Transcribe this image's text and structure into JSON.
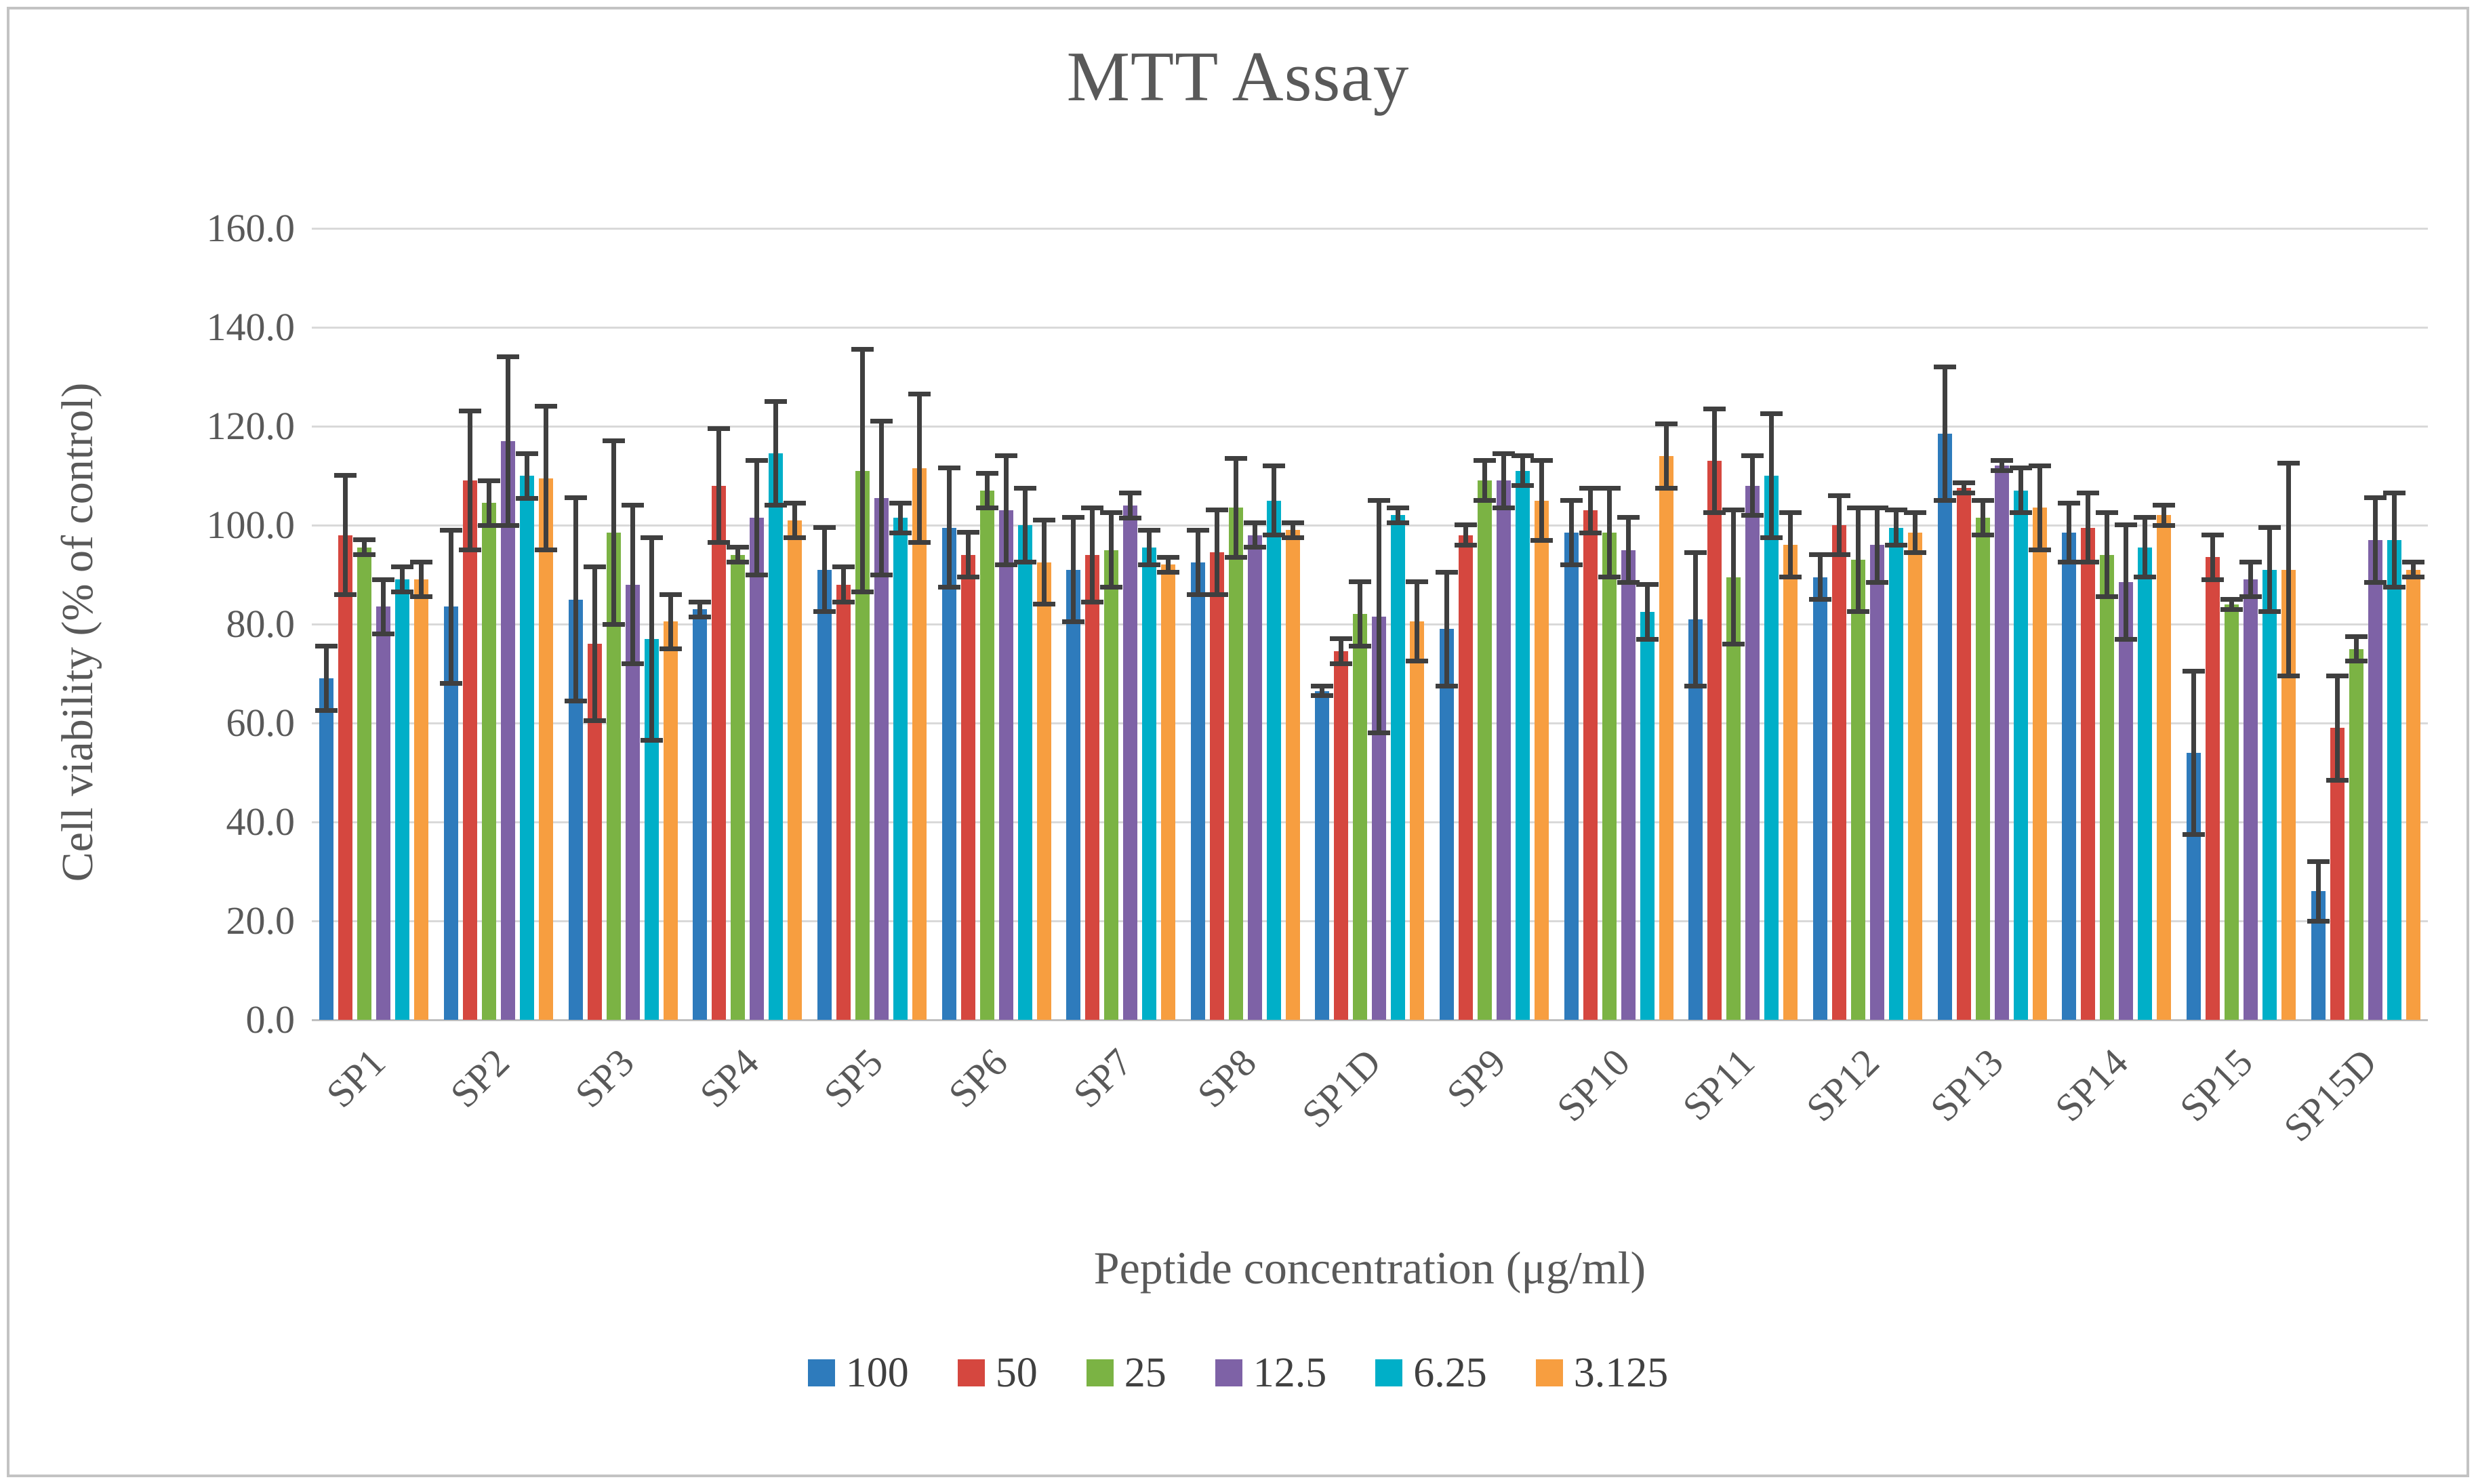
{
  "title": "MTT Assay",
  "y_axis": {
    "title": "Cell viability (% of control)",
    "tick_labels": [
      "160.0",
      "140.0",
      "120.0",
      "100.0",
      "80.0",
      "60.0",
      "40.0",
      "20.0",
      "0.0"
    ],
    "min": 0,
    "max": 160,
    "step": 20
  },
  "x_axis": {
    "title": "Peptide concentration (μg/ml)"
  },
  "legend": {
    "position": "bottom"
  },
  "colors": {
    "grid": "#d9d9d9",
    "axis_line": "#bfbfbf",
    "text": "#595959",
    "error_bar": "#3f3f3f"
  },
  "chart_data": {
    "type": "bar",
    "title": "MTT Assay",
    "xlabel": "Peptide concentration (μg/ml)",
    "ylabel": "Cell viability (% of control)",
    "ylim": [
      0,
      160
    ],
    "grid": true,
    "legend_position": "bottom",
    "categories": [
      "SP1",
      "SP2",
      "SP3",
      "SP4",
      "SP5",
      "SP6",
      "SP7",
      "SP8",
      "SP1D",
      "SP9",
      "SP10",
      "SP11",
      "SP12",
      "SP13",
      "SP14",
      "SP15",
      "SP15D"
    ],
    "series": [
      {
        "name": "100",
        "color": "#2e7bbc",
        "values": [
          69,
          83.5,
          85,
          83,
          91,
          99.5,
          91,
          92.5,
          66.5,
          79,
          98.5,
          81,
          89.5,
          118.5,
          98.5,
          54,
          26
        ],
        "errors": [
          7,
          16,
          21,
          2,
          9,
          12.5,
          11,
          7,
          1.5,
          12,
          7,
          14,
          5,
          14,
          6.5,
          17,
          6.5
        ]
      },
      {
        "name": "50",
        "color": "#d5473f",
        "values": [
          98,
          109,
          76,
          108,
          88,
          94,
          94,
          94.5,
          74.5,
          98,
          103,
          113,
          100,
          107.5,
          99.5,
          93.5,
          59
        ],
        "errors": [
          12.5,
          14.5,
          16,
          12,
          4,
          5,
          10,
          9,
          3,
          2.5,
          5,
          11,
          6.5,
          1.5,
          7.5,
          5,
          11
        ]
      },
      {
        "name": "25",
        "color": "#7bb344",
        "values": [
          95.5,
          104.5,
          98.5,
          94,
          111,
          107,
          95,
          103.5,
          82,
          109,
          98.5,
          89.5,
          93,
          101.5,
          94,
          84,
          75
        ],
        "errors": [
          2,
          5,
          19,
          2,
          25,
          4,
          8,
          10.5,
          7,
          4.5,
          9.5,
          14,
          11,
          4,
          9,
          1.5,
          3
        ]
      },
      {
        "name": "12.5",
        "color": "#7e62a6",
        "values": [
          83.5,
          117,
          88,
          101.5,
          105.5,
          103,
          104,
          98,
          81.5,
          109,
          95,
          108,
          96,
          112,
          88.5,
          89,
          97
        ],
        "errors": [
          6,
          17.5,
          16.5,
          12,
          16,
          11.5,
          3,
          3,
          24,
          6,
          7,
          6.5,
          8,
          1.5,
          12,
          4,
          9
        ]
      },
      {
        "name": "6.25",
        "color": "#00afc8",
        "values": [
          89,
          110,
          77,
          114.5,
          101.5,
          100,
          95.5,
          105,
          102,
          111,
          82.5,
          110,
          99.5,
          107,
          95.5,
          91,
          97
        ],
        "errors": [
          3,
          5,
          21,
          11,
          3.5,
          8,
          4,
          7.5,
          2,
          3.5,
          6,
          13,
          4,
          5,
          6.5,
          9,
          10
        ]
      },
      {
        "name": "3.125",
        "color": "#f79e40",
        "values": [
          89,
          109.5,
          80.5,
          101,
          111.5,
          92.5,
          92,
          99,
          80.5,
          105,
          114,
          96,
          98.5,
          103.5,
          102,
          91,
          91
        ],
        "errors": [
          4,
          15,
          6,
          4,
          15.5,
          9,
          2,
          2,
          8.5,
          8.5,
          7,
          7,
          4.5,
          9,
          2.5,
          22,
          2
        ]
      }
    ]
  }
}
